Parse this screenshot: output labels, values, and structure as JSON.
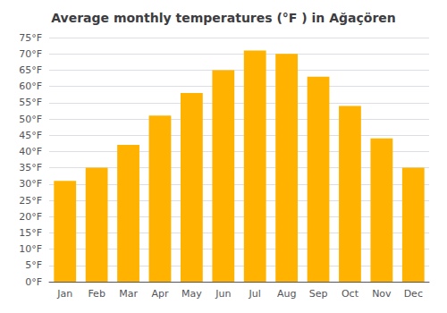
{
  "chart_data": {
    "type": "bar",
    "title": "Average monthly temperatures (°F ) in Ağaçören",
    "categories": [
      "Jan",
      "Feb",
      "Mar",
      "Apr",
      "May",
      "Jun",
      "Jul",
      "Aug",
      "Sep",
      "Oct",
      "Nov",
      "Dec"
    ],
    "values": [
      31,
      35,
      42,
      51,
      58,
      65,
      71,
      70,
      63,
      54,
      44,
      35
    ],
    "color": "#FFB300",
    "ylim": [
      0,
      75
    ],
    "yticks": [
      {
        "value": 0,
        "label": "0°F"
      },
      {
        "value": 5,
        "label": "5°F"
      },
      {
        "value": 10,
        "label": "10°F"
      },
      {
        "value": 15,
        "label": "15°F"
      },
      {
        "value": 20,
        "label": "20°F"
      },
      {
        "value": 25,
        "label": "25°F"
      },
      {
        "value": 30,
        "label": "30°F"
      },
      {
        "value": 35,
        "label": "35°F"
      },
      {
        "value": 40,
        "label": "40°F"
      },
      {
        "value": 45,
        "label": "45°F"
      },
      {
        "value": 50,
        "label": "50°F"
      },
      {
        "value": 55,
        "label": "55°F"
      },
      {
        "value": 60,
        "label": "60°F"
      },
      {
        "value": 65,
        "label": "65°F"
      },
      {
        "value": 70,
        "label": "70°F"
      },
      {
        "value": 75,
        "label": "75°F"
      }
    ],
    "grid": true
  }
}
